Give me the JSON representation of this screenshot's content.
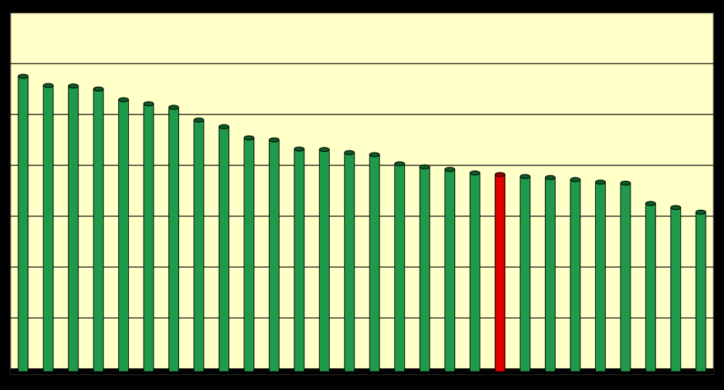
{
  "chart_data": {
    "type": "bar",
    "categories": [
      null,
      null,
      null,
      null,
      null,
      null,
      null,
      null,
      null,
      null,
      null,
      null,
      null,
      null,
      null,
      null,
      null,
      null,
      null,
      null,
      null,
      null,
      null,
      null,
      null,
      null,
      null,
      null
    ],
    "values": [
      5.75,
      5.57,
      5.56,
      5.5,
      5.29,
      5.21,
      5.14,
      4.89,
      4.76,
      4.54,
      4.5,
      4.32,
      4.31,
      4.25,
      4.21,
      4.03,
      3.97,
      3.92,
      3.85,
      3.82,
      3.78,
      3.76,
      3.72,
      3.67,
      3.65,
      3.25,
      3.17,
      3.08
    ],
    "colors": [
      "#1e9a4a",
      "#1e9a4a",
      "#1e9a4a",
      "#1e9a4a",
      "#1e9a4a",
      "#1e9a4a",
      "#1e9a4a",
      "#1e9a4a",
      "#1e9a4a",
      "#1e9a4a",
      "#1e9a4a",
      "#1e9a4a",
      "#1e9a4a",
      "#1e9a4a",
      "#1e9a4a",
      "#1e9a4a",
      "#1e9a4a",
      "#1e9a4a",
      "#1e9a4a",
      "#e00000",
      "#1e9a4a",
      "#1e9a4a",
      "#1e9a4a",
      "#1e9a4a",
      "#1e9a4a",
      "#1e9a4a",
      "#1e9a4a",
      "#1e9a4a"
    ],
    "ylim": [
      0,
      7
    ],
    "yticks": [
      0,
      1,
      2,
      3,
      4,
      5,
      6,
      7
    ],
    "grid": true
  }
}
